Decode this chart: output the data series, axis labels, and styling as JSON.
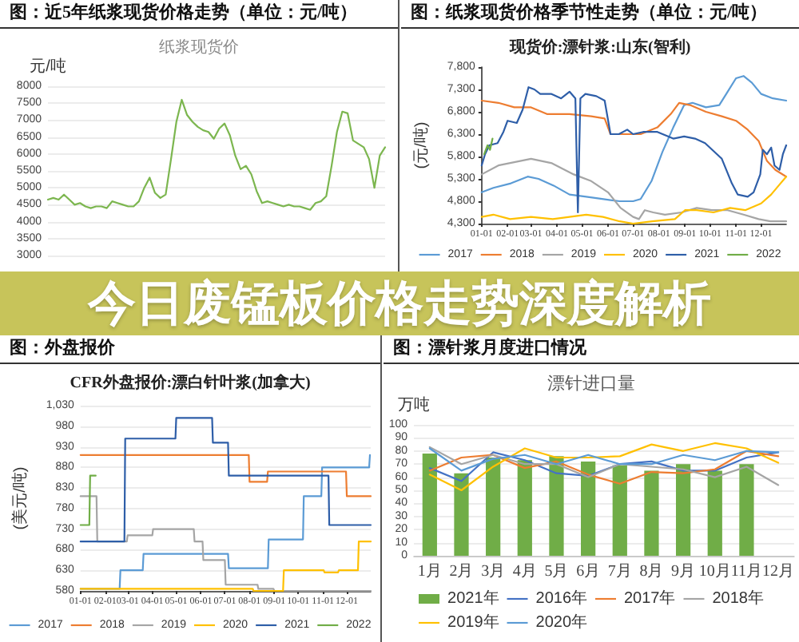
{
  "chart_data": [
    {
      "type": "line",
      "title": "图：近5年纸浆现货价格走势（单位：元/吨）",
      "subtitle": "纸浆现货价",
      "ylabel": "元/吨",
      "color": "#7cb64f",
      "categories": [
        null,
        null,
        null,
        null,
        null,
        null,
        null,
        null,
        null,
        null,
        null,
        null,
        null,
        null,
        null,
        null,
        null,
        null,
        null,
        null,
        null,
        null,
        null,
        null,
        null,
        null,
        null,
        null,
        null,
        null,
        null,
        null,
        null,
        null,
        null,
        null,
        null,
        null,
        null,
        null,
        null,
        null,
        null,
        null,
        null,
        null,
        null,
        null,
        null,
        null,
        null,
        null,
        null,
        null,
        null,
        null,
        null,
        null,
        null,
        null,
        null,
        null,
        null,
        null
      ],
      "values": [
        4650,
        4700,
        4650,
        4800,
        4650,
        4500,
        4550,
        4450,
        4400,
        4450,
        4450,
        4400,
        4600,
        4550,
        4500,
        4450,
        4450,
        4600,
        5000,
        5300,
        4850,
        4700,
        4800,
        5850,
        6950,
        7600,
        7150,
        6950,
        6800,
        6700,
        6650,
        6450,
        6750,
        6900,
        6550,
        5950,
        5550,
        5650,
        5400,
        4900,
        4550,
        4600,
        4550,
        4500,
        4450,
        4500,
        4450,
        4450,
        4400,
        4350,
        4550,
        4600,
        4750,
        5650,
        6650,
        7250,
        7200,
        6400,
        6300,
        6200,
        5850,
        5000,
        5950,
        6200
      ],
      "ylim": [
        3000,
        8000
      ],
      "yticks": [
        3000,
        3500,
        4000,
        4500,
        5000,
        5500,
        6000,
        6500,
        7000,
        7500,
        8000
      ],
      "grid": "y",
      "marker": "none",
      "tick_labels": "y"
    },
    {
      "type": "line",
      "title": "图：纸浆现货价格季节性走势（单位：元/吨）",
      "subtitle": "现货价:漂针浆:山东(智利)",
      "ylabel": "(元/吨)",
      "series": [
        {
          "name": "2017",
          "color": "#5b9bd5",
          "x": [
            "--01-01",
            "--01-15",
            "--02-05",
            "--02-25",
            "--03-10",
            "--03-28",
            "--04-16",
            "--05-06",
            "--05-25",
            "--06-15",
            "--07-01",
            "--07-10",
            "--07-23",
            "--08-05",
            "--08-18",
            "--08-31",
            "--09-10",
            "--09-26",
            "--10-12",
            "--10-22",
            "--11-01",
            "--11-10",
            "--11-20",
            "--12-01",
            "--12-15",
            "--12-31"
          ],
          "values": [
            5000,
            5100,
            5200,
            5350,
            5300,
            5150,
            4950,
            4900,
            4850,
            4800,
            4800,
            4850,
            5250,
            5900,
            6450,
            6950,
            7000,
            6900,
            6950,
            7250,
            7550,
            7600,
            7450,
            7200,
            7100,
            7050
          ]
        },
        {
          "name": "2018",
          "color": "#ed7d31",
          "x": [
            "--01-01",
            "--01-21",
            "--02-09",
            "--03-01",
            "--03-20",
            "--04-16",
            "--05-12",
            "--05-28",
            "--06-04",
            "--06-20",
            "--07-10",
            "--07-30",
            "--08-15",
            "--08-25",
            "--09-07",
            "--09-26",
            "--10-15",
            "--11-01",
            "--11-15",
            "--11-28",
            "--12-08",
            "--12-18",
            "--12-31"
          ],
          "values": [
            7050,
            7000,
            6900,
            6900,
            6750,
            6750,
            6700,
            6650,
            6300,
            6300,
            6300,
            6450,
            6750,
            7000,
            6950,
            6800,
            6700,
            6600,
            6400,
            6150,
            5700,
            5500,
            5350
          ]
        },
        {
          "name": "2019",
          "color": "#a5a5a5",
          "x": [
            "--01-01",
            "--01-21",
            "--02-16",
            "--03-01",
            "--03-26",
            "--04-21",
            "--05-12",
            "--06-01",
            "--06-16",
            "--07-01",
            "--07-08",
            "--07-15",
            "--07-25",
            "--08-08",
            "--08-28",
            "--09-15",
            "--10-03",
            "--10-22",
            "--11-10",
            "--11-28",
            "--12-12",
            "--12-31"
          ],
          "values": [
            5400,
            5600,
            5700,
            5750,
            5650,
            5400,
            5250,
            5000,
            4650,
            4450,
            4400,
            4600,
            4550,
            4500,
            4550,
            4650,
            4600,
            4600,
            4500,
            4400,
            4350,
            4350
          ]
        },
        {
          "name": "2020",
          "color": "#ffc000",
          "x": [
            "--01-01",
            "--01-15",
            "--02-04",
            "--03-01",
            "--03-27",
            "--04-16",
            "--05-06",
            "--05-26",
            "--06-15",
            "--07-01",
            "--07-24",
            "--08-20",
            "--09-01",
            "--09-15",
            "--10-05",
            "--10-25",
            "--11-12",
            "--12-01",
            "--12-13",
            "--12-22",
            "--12-31"
          ],
          "values": [
            4450,
            4500,
            4400,
            4450,
            4400,
            4450,
            4500,
            4450,
            4350,
            4300,
            4350,
            4400,
            4600,
            4600,
            4550,
            4650,
            4600,
            4750,
            4950,
            5150,
            5350
          ]
        },
        {
          "name": "2021",
          "color": "#2e5ea8",
          "x": [
            "--01-01",
            "--01-05",
            "--01-10",
            "--01-20",
            "--01-27",
            "--02-01",
            "--02-12",
            "--02-19",
            "--02-26",
            "--03-05",
            "--03-12",
            "--03-25",
            "--04-06",
            "--04-16",
            "--04-23",
            "--04-26",
            "--04-29",
            "--05-05",
            "--05-18",
            "--05-28",
            "--06-04",
            "--06-14",
            "--06-24",
            "--07-01",
            "--07-13",
            "--07-30",
            "--08-18",
            "--08-31",
            "--09-13",
            "--09-25",
            "--10-15",
            "--10-27",
            "--11-03",
            "--11-15",
            "--11-22",
            "--11-30",
            "--12-03",
            "--12-08",
            "--12-13",
            "--12-17",
            "--12-23",
            "--12-27",
            "--12-31"
          ],
          "values": [
            5600,
            5850,
            6050,
            6100,
            6350,
            6600,
            6550,
            6850,
            7350,
            7300,
            7200,
            7200,
            7100,
            7250,
            7100,
            4550,
            7100,
            7200,
            7150,
            7050,
            6300,
            6300,
            6400,
            6300,
            6350,
            6350,
            6200,
            6250,
            6200,
            6100,
            5750,
            5200,
            4950,
            4900,
            5000,
            5400,
            5950,
            5850,
            6000,
            5600,
            5500,
            5850,
            6050
          ]
        },
        {
          "name": "2022",
          "color": "#70ad47",
          "x": [
            "--01-04",
            "--01-08",
            "--01-11",
            "--01-14"
          ],
          "values": [
            5850,
            6050,
            5950,
            6200
          ]
        }
      ],
      "xlim": [
        "--01-01",
        "--12-31"
      ],
      "xticks": [
        {
          "value": "--01-01",
          "label": "01-01"
        },
        {
          "value": "--02-01",
          "label": "02-01"
        },
        {
          "value": "--03-01",
          "label": "03-01"
        },
        {
          "value": "--04-01",
          "label": "04-01"
        },
        {
          "value": "--05-01",
          "label": "05-01"
        },
        {
          "value": "--06-01",
          "label": "06-01"
        },
        {
          "value": "--07-01",
          "label": "07-01"
        },
        {
          "value": "--08-01",
          "label": "08-01"
        },
        {
          "value": "--09-01",
          "label": "09-01"
        },
        {
          "value": "--10-01",
          "label": "10-01"
        },
        {
          "value": "--11-01",
          "label": "11-01"
        },
        {
          "value": "--12-01",
          "label": "12-01"
        }
      ],
      "ylim": [
        4300,
        7800
      ],
      "yticks": [
        {
          "value": 4300,
          "label": "4,300"
        },
        {
          "value": 4800,
          "label": "4,800"
        },
        {
          "value": 5300,
          "label": "5,300"
        },
        {
          "value": 5800,
          "label": "5,800"
        },
        {
          "value": 6300,
          "label": "6,300"
        },
        {
          "value": 6800,
          "label": "6,800"
        },
        {
          "value": 7300,
          "label": "7,300"
        },
        {
          "value": 7800,
          "label": "7,800"
        }
      ],
      "marker": "none",
      "legend": "bottom"
    },
    {
      "type": "other",
      "title": "今日废锰板价格走势深度解析"
    },
    {
      "type": "line",
      "title": "图：外盘报价",
      "subtitle": "CFR外盘报价:漂白针叶浆(加拿大)",
      "ylabel": "(美元/吨)",
      "series": [
        {
          "name": "2017",
          "color": "#5b9bd5",
          "x": [
            "--01-01",
            "--02-19",
            "--02-20",
            "--03-20",
            "--03-21",
            "--07-05",
            "--07-06",
            "--08-24",
            "--08-25",
            "--10-07",
            "--10-08",
            "--10-30",
            "--10-31",
            "--12-29",
            "--12-30",
            "--12-31"
          ],
          "values": [
            585,
            585,
            630,
            630,
            670,
            670,
            635,
            635,
            705,
            705,
            810,
            810,
            880,
            880,
            910,
            910
          ]
        },
        {
          "name": "2018",
          "color": "#ed7d31",
          "x": [
            "--01-01",
            "--07-31",
            "--08-01",
            "--08-23",
            "--08-24",
            "--11-30",
            "--12-01",
            "--12-31"
          ],
          "values": [
            910,
            910,
            845,
            845,
            870,
            870,
            810,
            810
          ]
        },
        {
          "name": "2019",
          "color": "#a5a5a5",
          "x": [
            "--01-01",
            "--01-21",
            "--01-22",
            "--02-28",
            "--03-01",
            "--04-01",
            "--04-02",
            "--05-23",
            "--05-24",
            "--06-03",
            "--06-04",
            "--07-01",
            "--07-02",
            "--08-11",
            "--08-12",
            "--08-31",
            "--09-01",
            "--12-31"
          ],
          "values": [
            810,
            810,
            700,
            700,
            715,
            715,
            730,
            730,
            700,
            700,
            655,
            655,
            595,
            595,
            585,
            585,
            580,
            580
          ]
        },
        {
          "name": "2020",
          "color": "#ffc000",
          "x": [
            "--01-01",
            "--08-05",
            "--08-06",
            "--09-12",
            "--09-13",
            "--11-02",
            "--11-03",
            "--11-20",
            "--11-21",
            "--12-15",
            "--12-16",
            "--12-31"
          ],
          "values": [
            585,
            585,
            580,
            580,
            630,
            630,
            625,
            625,
            630,
            630,
            700,
            700
          ]
        },
        {
          "name": "2021",
          "color": "#2e5ea8",
          "x": [
            "--01-01",
            "--02-25",
            "--02-26",
            "--04-30",
            "--05-01",
            "--06-15",
            "--06-16",
            "--07-05",
            "--07-06",
            "--11-08",
            "--11-09",
            "--12-31"
          ],
          "values": [
            700,
            700,
            950,
            950,
            1000,
            1000,
            940,
            940,
            860,
            860,
            740,
            740
          ]
        },
        {
          "name": "2022",
          "color": "#70ad47",
          "x": [
            "--01-01",
            "--01-12",
            "--01-13",
            "--01-20"
          ],
          "values": [
            740,
            740,
            860,
            860
          ]
        }
      ],
      "xlim": [
        "--01-01",
        "--12-31"
      ],
      "xticks": [
        {
          "value": "--01-01",
          "label": "01-01"
        },
        {
          "value": "--02-01",
          "label": "02-01"
        },
        {
          "value": "--03-01",
          "label": "03-01"
        },
        {
          "value": "--04-01",
          "label": "04-01"
        },
        {
          "value": "--05-01",
          "label": "05-01"
        },
        {
          "value": "--06-01",
          "label": "06-01"
        },
        {
          "value": "--07-01",
          "label": "07-01"
        },
        {
          "value": "--08-01",
          "label": "08-01"
        },
        {
          "value": "--09-01",
          "label": "09-01"
        },
        {
          "value": "--10-01",
          "label": "10-01"
        },
        {
          "value": "--11-01",
          "label": "11-01"
        },
        {
          "value": "--12-01",
          "label": "12-01"
        }
      ],
      "ylim": [
        580,
        1030
      ],
      "yticks": [
        580,
        630,
        680,
        730,
        780,
        830,
        880,
        930,
        980,
        {
          "value": 1030,
          "label": "1,030"
        }
      ],
      "grid": "y",
      "marker": "none",
      "legend": "bottom"
    },
    {
      "type": "bar",
      "title": "图：漂针浆月度进口情况",
      "subtitle": "漂针进口量",
      "ylabel": "万吨",
      "categories": [
        "1月",
        "2月",
        "3月",
        "4月",
        "5月",
        "6月",
        "7月",
        "8月",
        "9月",
        "10月",
        "11月",
        "12月"
      ],
      "series": [
        {
          "name": "2021年",
          "color": "#70ad47",
          "values": [
            78,
            63,
            75,
            73,
            76,
            72,
            69,
            65,
            70,
            65,
            70,
            null
          ]
        },
        {
          "name": "2016年",
          "type": "line",
          "color": "#4472c4",
          "values": [
            67,
            57,
            79,
            73,
            63,
            61,
            70,
            72,
            65,
            65,
            75,
            79
          ]
        },
        {
          "name": "2017年",
          "type": "line",
          "color": "#ed7d31",
          "values": [
            65,
            75,
            77,
            67,
            72,
            62,
            55,
            64,
            63,
            66,
            80,
            76
          ]
        },
        {
          "name": "2018年",
          "type": "line",
          "color": "#a5a5a5",
          "values": [
            83,
            70,
            77,
            70,
            70,
            60,
            70,
            68,
            66,
            60,
            68,
            54
          ]
        },
        {
          "name": "2019年",
          "type": "line",
          "color": "#ffc000",
          "values": [
            62,
            50,
            68,
            82,
            75,
            75,
            76,
            85,
            80,
            86,
            82,
            71
          ]
        },
        {
          "name": "2020年",
          "type": "line",
          "color": "#5b9bd5",
          "values": [
            82,
            65,
            74,
            77,
            70,
            77,
            70,
            70,
            77,
            73,
            80,
            79
          ]
        }
      ],
      "ylim": [
        0,
        100
      ],
      "yticks": [
        0,
        10,
        20,
        30,
        40,
        50,
        60,
        70,
        80,
        90,
        100
      ],
      "grid": "y",
      "marker": "none",
      "legend": "bottom"
    }
  ]
}
